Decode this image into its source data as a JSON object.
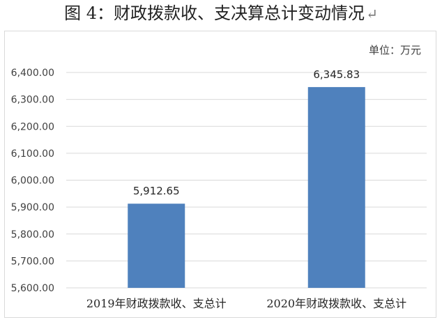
{
  "title": "图 4：财政拨款收、支决算总计变动情况",
  "title_mark": "↵",
  "chart_data": {
    "type": "bar",
    "unit": "单位：万元",
    "categories": [
      "2019年财政拨款收、支总计",
      "2020年财政拨款收、支总计"
    ],
    "values": [
      5912.65,
      6345.83
    ],
    "data_labels": [
      "5,912.65",
      "6,345.83"
    ],
    "ylim": [
      5600,
      6400
    ],
    "yticks": [
      "5,600.00",
      "5,700.00",
      "5,800.00",
      "5,900.00",
      "6,000.00",
      "6,100.00",
      "6,200.00",
      "6,300.00",
      "6,400.00"
    ],
    "ytick_values": [
      5600,
      5700,
      5800,
      5900,
      6000,
      6100,
      6200,
      6300,
      6400
    ],
    "grid": true,
    "bar_color": "#4F81BD",
    "grid_color": "#d9d9d9"
  }
}
